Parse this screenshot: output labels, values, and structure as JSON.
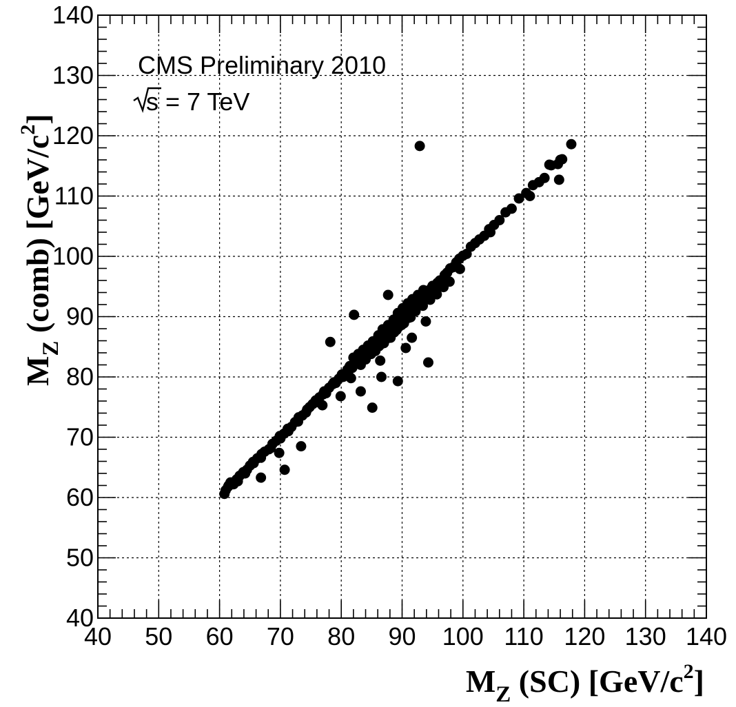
{
  "chart_data": {
    "type": "scatter",
    "annotations": {
      "line1": "CMS Preliminary 2010",
      "line2_prefix": "s",
      "line2_suffix": " = 7 TeV"
    },
    "xlabel": {
      "main": "M",
      "sub": "Z",
      "rest": " (SC) [GeV/c",
      "sup": "2",
      "end": "]"
    },
    "ylabel": {
      "main": "M",
      "sub": "Z",
      "rest": " (comb) [GeV/c",
      "sup": "2",
      "end": "]"
    },
    "xlim": [
      40,
      140
    ],
    "ylim": [
      40,
      140
    ],
    "xticks": [
      "40",
      "50",
      "60",
      "70",
      "80",
      "90",
      "100",
      "110",
      "120",
      "130",
      "140"
    ],
    "yticks": [
      "40",
      "50",
      "60",
      "70",
      "80",
      "90",
      "100",
      "110",
      "120",
      "130",
      "140"
    ],
    "grid": true,
    "marker_color": "#000000",
    "points": [
      [
        60.8,
        60.6
      ],
      [
        61.0,
        61.2
      ],
      [
        61.4,
        61.8
      ],
      [
        61.8,
        62.5
      ],
      [
        62.3,
        62.2
      ],
      [
        62.8,
        63.0
      ],
      [
        63.3,
        63.6
      ],
      [
        63.9,
        64.2
      ],
      [
        64.5,
        64.6
      ],
      [
        65.0,
        65.3
      ],
      [
        65.6,
        65.7
      ],
      [
        66.2,
        66.5
      ],
      [
        66.8,
        66.6
      ],
      [
        67.4,
        67.6
      ],
      [
        68.1,
        68.0
      ],
      [
        68.7,
        68.9
      ],
      [
        69.3,
        69.4
      ],
      [
        70.0,
        69.8
      ],
      [
        70.6,
        70.6
      ],
      [
        71.2,
        71.4
      ],
      [
        71.8,
        71.7
      ],
      [
        72.4,
        72.5
      ],
      [
        73.0,
        73.3
      ],
      [
        73.6,
        73.6
      ],
      [
        74.2,
        74.1
      ],
      [
        74.8,
        75.0
      ],
      [
        75.3,
        75.5
      ],
      [
        75.9,
        75.8
      ],
      [
        76.4,
        76.6
      ],
      [
        77.0,
        77.1
      ],
      [
        77.5,
        77.3
      ],
      [
        78.0,
        78.2
      ],
      [
        78.6,
        78.8
      ],
      [
        79.1,
        79.0
      ],
      [
        79.6,
        79.7
      ],
      [
        80.1,
        80.4
      ],
      [
        80.6,
        80.5
      ],
      [
        81.0,
        81.2
      ],
      [
        81.4,
        81.8
      ],
      [
        81.8,
        81.5
      ],
      [
        82.2,
        82.4
      ],
      [
        82.6,
        83.0
      ],
      [
        83.0,
        82.7
      ],
      [
        83.4,
        83.6
      ],
      [
        83.8,
        84.2
      ],
      [
        84.2,
        83.9
      ],
      [
        84.6,
        84.8
      ],
      [
        85.0,
        85.3
      ],
      [
        85.3,
        84.9
      ],
      [
        85.7,
        85.8
      ],
      [
        86.0,
        86.4
      ],
      [
        86.3,
        86.0
      ],
      [
        86.6,
        86.9
      ],
      [
        86.9,
        87.3
      ],
      [
        87.2,
        86.8
      ],
      [
        87.5,
        87.6
      ],
      [
        87.8,
        88.1
      ],
      [
        88.0,
        87.7
      ],
      [
        88.3,
        88.5
      ],
      [
        88.5,
        88.9
      ],
      [
        88.8,
        88.3
      ],
      [
        89.0,
        89.2
      ],
      [
        89.2,
        89.6
      ],
      [
        89.4,
        89.0
      ],
      [
        89.6,
        89.9
      ],
      [
        89.8,
        90.3
      ],
      [
        90.0,
        89.6
      ],
      [
        90.2,
        90.5
      ],
      [
        90.4,
        90.9
      ],
      [
        90.6,
        90.2
      ],
      [
        90.8,
        91.1
      ],
      [
        91.0,
        91.5
      ],
      [
        91.2,
        90.8
      ],
      [
        91.4,
        91.7
      ],
      [
        91.6,
        92.1
      ],
      [
        91.8,
        91.4
      ],
      [
        92.0,
        92.3
      ],
      [
        92.3,
        92.7
      ],
      [
        92.5,
        92.0
      ],
      [
        92.8,
        93.0
      ],
      [
        93.1,
        93.4
      ],
      [
        93.4,
        92.8
      ],
      [
        93.7,
        93.8
      ],
      [
        94.0,
        94.2
      ],
      [
        94.3,
        93.6
      ],
      [
        94.7,
        94.6
      ],
      [
        95.0,
        95.1
      ],
      [
        95.4,
        94.7
      ],
      [
        95.8,
        95.6
      ],
      [
        96.2,
        96.0
      ],
      [
        96.6,
        95.5
      ],
      [
        97.0,
        96.9
      ],
      [
        97.4,
        97.3
      ],
      [
        97.9,
        98.0
      ],
      [
        98.4,
        98.2
      ],
      [
        98.9,
        99.0
      ],
      [
        99.4,
        99.6
      ],
      [
        100.0,
        100.1
      ],
      [
        100.6,
        100.4
      ],
      [
        101.3,
        101.6
      ],
      [
        102.0,
        102.2
      ],
      [
        102.7,
        102.8
      ],
      [
        103.5,
        103.4
      ],
      [
        104.3,
        104.5
      ],
      [
        105.1,
        105.2
      ],
      [
        106.0,
        106.0
      ],
      [
        107.0,
        107.3
      ],
      [
        108.0,
        107.9
      ],
      [
        109.2,
        109.6
      ],
      [
        110.4,
        110.5
      ],
      [
        111.5,
        111.8
      ],
      [
        112.5,
        112.3
      ],
      [
        113.4,
        113.0
      ],
      [
        114.5,
        115.1
      ],
      [
        115.6,
        115.3
      ],
      [
        116.3,
        116.1
      ],
      [
        117.8,
        118.6
      ],
      [
        115.8,
        112.7
      ],
      [
        61.5,
        62.0
      ],
      [
        63.0,
        62.7
      ],
      [
        64.2,
        64.0
      ],
      [
        65.5,
        65.9
      ],
      [
        66.9,
        67.2
      ],
      [
        68.4,
        68.2
      ],
      [
        69.9,
        70.2
      ],
      [
        71.3,
        71.0
      ],
      [
        72.9,
        72.6
      ],
      [
        74.4,
        74.6
      ],
      [
        75.8,
        76.1
      ],
      [
        77.2,
        77.6
      ],
      [
        78.8,
        79.1
      ],
      [
        80.3,
        80.0
      ],
      [
        81.2,
        81.0
      ],
      [
        82.0,
        83.2
      ],
      [
        82.8,
        83.8
      ],
      [
        83.6,
        84.5
      ],
      [
        84.4,
        85.2
      ],
      [
        85.2,
        85.9
      ],
      [
        86.1,
        86.9
      ],
      [
        86.8,
        87.9
      ],
      [
        87.7,
        88.6
      ],
      [
        88.6,
        89.5
      ],
      [
        89.3,
        90.6
      ],
      [
        90.1,
        91.4
      ],
      [
        90.9,
        92.2
      ],
      [
        91.7,
        92.9
      ],
      [
        92.6,
        93.6
      ],
      [
        93.5,
        94.4
      ],
      [
        84.9,
        83.8
      ],
      [
        86.2,
        85.1
      ],
      [
        87.4,
        86.3
      ],
      [
        88.7,
        87.4
      ],
      [
        89.9,
        88.6
      ],
      [
        91.1,
        89.8
      ],
      [
        92.2,
        90.9
      ],
      [
        93.4,
        91.8
      ],
      [
        94.6,
        92.8
      ],
      [
        95.7,
        93.7
      ],
      [
        87.0,
        85.6
      ],
      [
        88.1,
        86.5
      ],
      [
        89.1,
        87.8
      ],
      [
        90.3,
        88.9
      ],
      [
        91.4,
        89.9
      ],
      [
        83.2,
        82.0
      ],
      [
        84.0,
        82.9
      ],
      [
        85.6,
        84.3
      ],
      [
        86.5,
        85.4
      ],
      [
        87.9,
        86.9
      ],
      [
        92.9,
        118.3
      ],
      [
        78.2,
        85.8
      ],
      [
        82.1,
        90.3
      ],
      [
        87.7,
        93.6
      ],
      [
        94.3,
        82.4
      ],
      [
        85.1,
        74.9
      ],
      [
        86.6,
        80.0
      ],
      [
        89.3,
        79.3
      ],
      [
        83.2,
        77.6
      ],
      [
        79.9,
        76.8
      ],
      [
        73.4,
        68.5
      ],
      [
        70.7,
        64.6
      ],
      [
        66.8,
        63.3
      ],
      [
        69.8,
        67.4
      ],
      [
        76.9,
        75.3
      ],
      [
        81.6,
        79.8
      ],
      [
        86.4,
        82.7
      ],
      [
        90.6,
        84.8
      ],
      [
        91.6,
        86.5
      ],
      [
        93.9,
        89.2
      ],
      [
        96.8,
        94.9
      ],
      [
        97.8,
        95.8
      ],
      [
        99.5,
        97.9
      ],
      [
        104.5,
        104.0
      ],
      [
        111.0,
        110.0
      ],
      [
        114.2,
        115.2
      ],
      [
        116.0,
        116.0
      ]
    ]
  }
}
